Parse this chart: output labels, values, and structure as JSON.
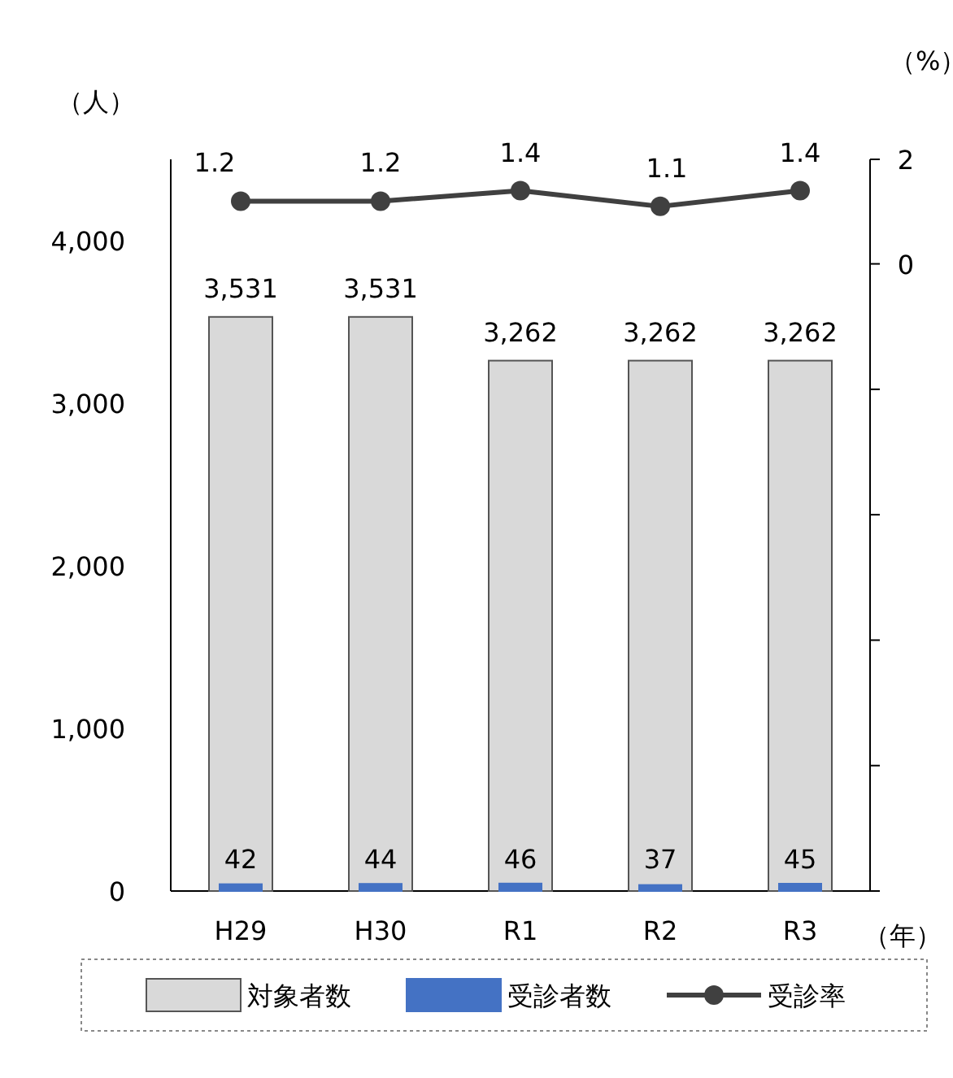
{
  "chart_data": {
    "type": "bar",
    "categories": [
      "H29",
      "H30",
      "R1",
      "R2",
      "R3"
    ],
    "series": [
      {
        "name": "対象者数",
        "color": "#d9d9d9",
        "values": [
          3531,
          3531,
          3262,
          3262,
          3262
        ],
        "value_labels": [
          "3,531",
          "3,531",
          "3,262",
          "3,262",
          "3,262"
        ]
      },
      {
        "name": "受診者数",
        "color": "#4472c4",
        "values": [
          42,
          44,
          46,
          37,
          45
        ]
      },
      {
        "name": "受診率",
        "type": "line",
        "axis": "y2",
        "color": "#404040",
        "values": [
          1.2,
          1.2,
          1.4,
          1.1,
          1.4
        ]
      }
    ],
    "ylabel": "（人）",
    "y2label": "（%）",
    "xlabel": "（年）",
    "ylim": [
      0,
      4500
    ],
    "yticks": [
      {
        "value": 0,
        "label": "0"
      },
      {
        "value": 1000,
        "label": "1,000"
      },
      {
        "value": 2000,
        "label": "2,000"
      },
      {
        "value": 3000,
        "label": "3,000"
      },
      {
        "value": 4000,
        "label": "4,000"
      }
    ],
    "y2lim": [
      -12,
      2
    ],
    "y2ticks": [
      {
        "value": 2,
        "label": "2"
      },
      {
        "value": 0,
        "label": "0"
      },
      {
        "value": -2.4,
        "label": null
      },
      {
        "value": -4.8,
        "label": null
      },
      {
        "value": -7.2,
        "label": null
      },
      {
        "value": -9.6,
        "label": null
      },
      {
        "value": -12,
        "label": null
      }
    ],
    "data_labels": true,
    "marker": "circle",
    "legend": "bottom"
  }
}
